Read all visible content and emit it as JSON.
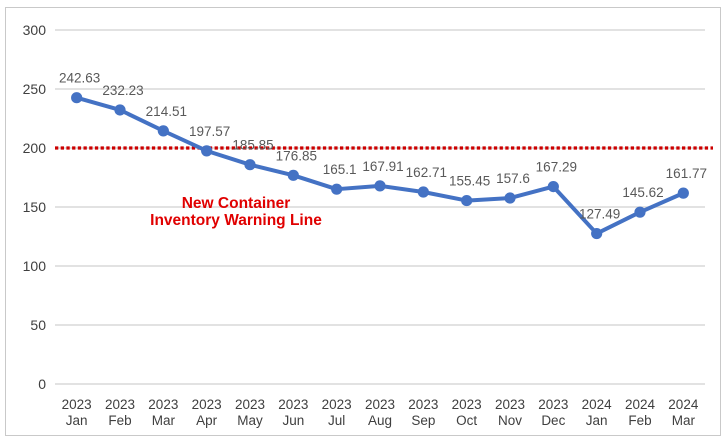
{
  "chart_data": {
    "type": "line",
    "title": "",
    "xlabel": "",
    "ylabel": "",
    "categories": [
      [
        "2023",
        "Jan"
      ],
      [
        "2023",
        "Feb"
      ],
      [
        "2023",
        "Mar"
      ],
      [
        "2023",
        "Apr"
      ],
      [
        "2023",
        "May"
      ],
      [
        "2023",
        "Jun"
      ],
      [
        "2023",
        "Jul"
      ],
      [
        "2023",
        "Aug"
      ],
      [
        "2023",
        "Sep"
      ],
      [
        "2023",
        "Oct"
      ],
      [
        "2023",
        "Nov"
      ],
      [
        "2023",
        "Dec"
      ],
      [
        "2024",
        "Jan"
      ],
      [
        "2024",
        "Feb"
      ],
      [
        "2024",
        "Mar"
      ]
    ],
    "values": [
      242.63,
      232.23,
      214.51,
      197.57,
      185.85,
      176.85,
      165.1,
      167.91,
      162.71,
      155.45,
      157.6,
      167.29,
      127.49,
      145.62,
      161.77
    ],
    "data_labels": [
      "242.63",
      "232.23",
      "214.51",
      "197.57",
      "185.85",
      "176.85",
      "165.1",
      "167.91",
      "162.71",
      "155.45",
      "157.6",
      "167.29",
      "127.49",
      "145.62",
      "161.77"
    ],
    "ylim": [
      0,
      300
    ],
    "y_ticks": [
      0,
      50,
      100,
      150,
      200,
      250,
      300
    ],
    "grid": true,
    "legend": "none",
    "series_color": "#4472c4",
    "grid_color": "#d9d9d9",
    "axis_label_color": "#3f3f3f",
    "data_label_color": "#595959",
    "warning_line": {
      "value": 200,
      "style": "dotted",
      "color": "#cc0000",
      "label_lines": [
        "New Container",
        "Inventory Warning Line"
      ],
      "label_color": "#e00000"
    }
  }
}
